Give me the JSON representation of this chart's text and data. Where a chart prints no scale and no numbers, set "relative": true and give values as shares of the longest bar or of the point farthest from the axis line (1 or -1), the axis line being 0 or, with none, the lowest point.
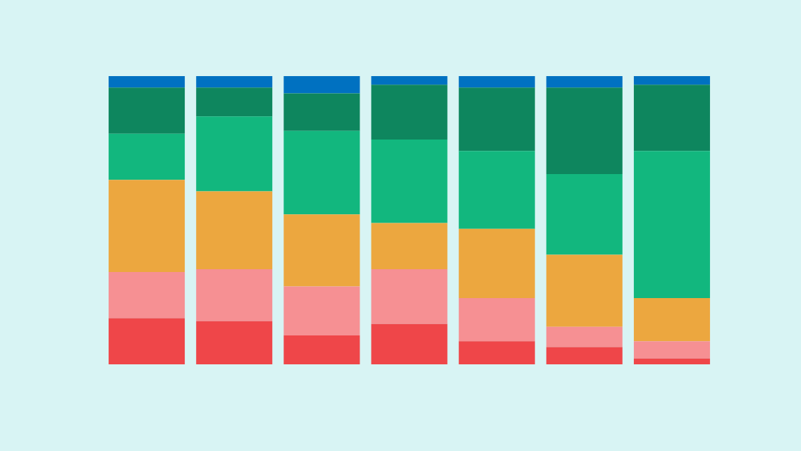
{
  "chart_data": {
    "type": "bar",
    "stacked": true,
    "relative": true,
    "categories": [
      null,
      null,
      null,
      null,
      null,
      null,
      null
    ],
    "series": [
      {
        "color": "#ef4649",
        "values": [
          0.16,
          0.15,
          0.1,
          0.14,
          0.08,
          0.06,
          0.02
        ]
      },
      {
        "color": "#f69093",
        "values": [
          0.16,
          0.18,
          0.17,
          0.19,
          0.15,
          0.07,
          0.06
        ]
      },
      {
        "color": "#eca73f",
        "values": [
          0.32,
          0.27,
          0.25,
          0.16,
          0.24,
          0.25,
          0.15
        ]
      },
      {
        "color": "#12b77e",
        "values": [
          0.16,
          0.26,
          0.29,
          0.29,
          0.27,
          0.28,
          0.51
        ]
      },
      {
        "color": "#0e865e",
        "values": [
          0.16,
          0.1,
          0.13,
          0.19,
          0.22,
          0.3,
          0.23
        ]
      },
      {
        "color": "#0071c1",
        "values": [
          0.04,
          0.04,
          0.06,
          0.03,
          0.04,
          0.04,
          0.03
        ]
      }
    ]
  }
}
